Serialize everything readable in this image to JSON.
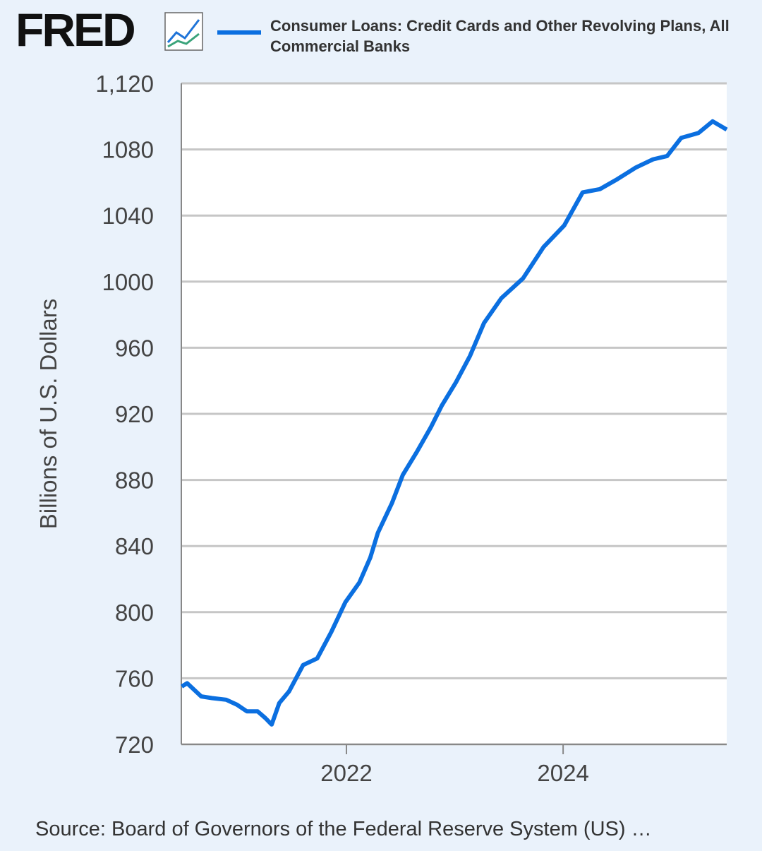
{
  "chart_data": {
    "type": "line",
    "logo": "FRED",
    "y_label": "Billions of U.S. Dollars",
    "source": "Source: Board of Governors of the Federal Reserve System (US) …",
    "series": [
      {
        "name": "Consumer Loans: Credit Cards and Other Revolving Plans, All Commercial Banks",
        "color": "#0b6fe0",
        "x": [
          2020.48,
          2020.53,
          2020.66,
          2020.76,
          2020.89,
          2020.99,
          2021.08,
          2021.18,
          2021.25,
          2021.31,
          2021.38,
          2021.47,
          2021.6,
          2021.73,
          2021.86,
          2021.99,
          2022.12,
          2022.22,
          2022.29,
          2022.42,
          2022.52,
          2022.65,
          2022.78,
          2022.88,
          2023.01,
          2023.14,
          2023.27,
          2023.43,
          2023.63,
          2023.82,
          2024.01,
          2024.18,
          2024.34,
          2024.5,
          2024.67,
          2024.83,
          2024.96,
          2025.09,
          2025.25,
          2025.38,
          2025.51
        ],
        "values": [
          755,
          757,
          749,
          748,
          747,
          744,
          740,
          740,
          736,
          732,
          745,
          752,
          768,
          772,
          788,
          806,
          818,
          833,
          848,
          866,
          883,
          897,
          912,
          925,
          939,
          955,
          975,
          990,
          1002,
          1021,
          1034,
          1054,
          1056,
          1062,
          1069,
          1074,
          1076,
          1087,
          1090,
          1097,
          1092
        ]
      }
    ],
    "xlim": [
      2020.476,
      2025.51
    ],
    "xticks": [
      2022,
      2024
    ],
    "ylim": [
      720,
      1120
    ],
    "yticks": [
      720,
      760,
      800,
      840,
      880,
      920,
      960,
      1000,
      1040,
      1080,
      {
        "value": 1120,
        "label": "1,120"
      }
    ],
    "yticks_labels_note_free": null,
    "grid": true
  }
}
